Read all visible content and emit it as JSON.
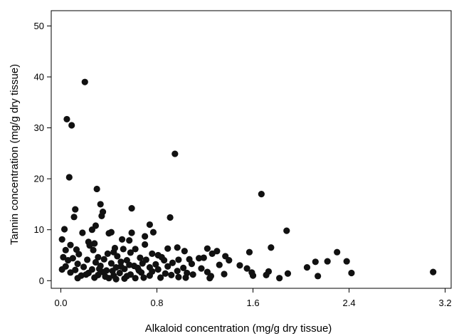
{
  "chart_data": {
    "type": "scatter",
    "title": "",
    "xlabel": "Alkaloid concentration (mg/g dry tissue)",
    "ylabel": "Tannin concentration (mg/g dry tissue)",
    "xlim": [
      -0.08,
      3.25
    ],
    "ylim": [
      -1.5,
      53
    ],
    "xticks": [
      0.0,
      0.8,
      1.6,
      2.4,
      3.2
    ],
    "xtick_labels": [
      "0.0",
      "0.8",
      "1.6",
      "2.4",
      "3.2"
    ],
    "yticks": [
      0,
      10,
      20,
      30,
      40,
      50
    ],
    "ytick_labels": [
      "0",
      "10",
      "20",
      "30",
      "40",
      "50"
    ],
    "grid": false,
    "marker_color": "#111111",
    "series": [
      {
        "points": [
          [
            0.2,
            39.0
          ],
          [
            0.05,
            31.7
          ],
          [
            0.09,
            30.5
          ],
          [
            0.95,
            24.9
          ],
          [
            0.07,
            20.3
          ],
          [
            0.3,
            18.0
          ],
          [
            1.67,
            17.0
          ],
          [
            0.33,
            15.0
          ],
          [
            0.12,
            14.0
          ],
          [
            0.59,
            14.2
          ],
          [
            0.35,
            13.5
          ],
          [
            0.34,
            12.7
          ],
          [
            0.11,
            12.5
          ],
          [
            0.91,
            12.4
          ],
          [
            0.74,
            11.0
          ],
          [
            0.29,
            10.8
          ],
          [
            0.03,
            10.1
          ],
          [
            1.88,
            9.8
          ],
          [
            0.26,
            10.0
          ],
          [
            0.42,
            9.5
          ],
          [
            0.18,
            9.4
          ],
          [
            0.4,
            9.3
          ],
          [
            0.77,
            9.5
          ],
          [
            0.59,
            9.4
          ],
          [
            0.7,
            8.7
          ],
          [
            0.01,
            8.1
          ],
          [
            0.51,
            8.1
          ],
          [
            0.57,
            7.9
          ],
          [
            0.23,
            7.6
          ],
          [
            0.28,
            7.3
          ],
          [
            0.24,
            6.9
          ],
          [
            0.08,
            7.0
          ],
          [
            0.7,
            7.1
          ],
          [
            0.97,
            6.5
          ],
          [
            1.22,
            6.3
          ],
          [
            1.75,
            6.5
          ],
          [
            0.45,
            6.4
          ],
          [
            0.62,
            6.2
          ],
          [
            0.13,
            6.1
          ],
          [
            0.04,
            6.0
          ],
          [
            0.27,
            6.0
          ],
          [
            0.52,
            6.2
          ],
          [
            0.89,
            6.3
          ],
          [
            1.03,
            5.8
          ],
          [
            1.3,
            5.8
          ],
          [
            1.57,
            5.6
          ],
          [
            2.3,
            5.6
          ],
          [
            0.15,
            5.2
          ],
          [
            0.39,
            5.3
          ],
          [
            0.44,
            5.6
          ],
          [
            0.58,
            5.5
          ],
          [
            0.76,
            5.3
          ],
          [
            0.81,
            5.0
          ],
          [
            1.26,
            5.3
          ],
          [
            1.37,
            4.8
          ],
          [
            0.02,
            4.6
          ],
          [
            0.1,
            4.4
          ],
          [
            0.31,
            4.6
          ],
          [
            0.47,
            4.8
          ],
          [
            0.66,
            4.5
          ],
          [
            0.84,
            4.6
          ],
          [
            1.07,
            4.2
          ],
          [
            1.15,
            4.4
          ],
          [
            1.19,
            4.5
          ],
          [
            1.4,
            4.0
          ],
          [
            0.06,
            4.0
          ],
          [
            0.22,
            4.1
          ],
          [
            0.36,
            4.2
          ],
          [
            0.55,
            4.0
          ],
          [
            0.71,
            4.1
          ],
          [
            0.86,
            4.0
          ],
          [
            0.98,
            4.1
          ],
          [
            2.12,
            3.7
          ],
          [
            2.22,
            3.8
          ],
          [
            2.38,
            3.8
          ],
          [
            0.14,
            3.3
          ],
          [
            0.29,
            3.6
          ],
          [
            0.42,
            3.4
          ],
          [
            0.5,
            3.7
          ],
          [
            0.68,
            3.4
          ],
          [
            0.79,
            3.2
          ],
          [
            0.93,
            3.5
          ],
          [
            1.09,
            3.3
          ],
          [
            1.32,
            3.1
          ],
          [
            1.49,
            3.0
          ],
          [
            0.04,
            2.8
          ],
          [
            0.19,
            2.7
          ],
          [
            0.33,
            2.9
          ],
          [
            0.46,
            2.6
          ],
          [
            0.61,
            2.9
          ],
          [
            0.74,
            2.6
          ],
          [
            0.89,
            2.8
          ],
          [
            1.02,
            2.5
          ],
          [
            1.17,
            2.4
          ],
          [
            1.55,
            2.4
          ],
          [
            2.05,
            2.6
          ],
          [
            0.01,
            2.2
          ],
          [
            0.12,
            2.1
          ],
          [
            0.26,
            2.2
          ],
          [
            0.38,
            2.0
          ],
          [
            0.53,
            2.3
          ],
          [
            0.65,
            2.0
          ],
          [
            0.81,
            2.2
          ],
          [
            0.97,
            1.9
          ],
          [
            1.22,
            1.7
          ],
          [
            1.59,
            1.6
          ],
          [
            0.08,
            1.6
          ],
          [
            0.23,
            1.5
          ],
          [
            0.35,
            1.7
          ],
          [
            0.49,
            1.5
          ],
          [
            0.67,
            1.6
          ],
          [
            0.87,
            1.4
          ],
          [
            1.05,
            1.5
          ],
          [
            1.36,
            1.3
          ],
          [
            1.73,
            1.8
          ],
          [
            1.89,
            1.4
          ],
          [
            2.42,
            1.5
          ],
          [
            3.1,
            1.7
          ],
          [
            0.17,
            1.0
          ],
          [
            0.31,
            1.1
          ],
          [
            0.44,
            1.0
          ],
          [
            0.58,
            1.2
          ],
          [
            0.74,
            1.0
          ],
          [
            0.92,
            1.1
          ],
          [
            1.1,
            1.2
          ],
          [
            1.25,
            0.9
          ],
          [
            1.6,
            1.0
          ],
          [
            1.71,
            1.1
          ],
          [
            2.14,
            0.9
          ],
          [
            0.28,
            0.6
          ],
          [
            0.4,
            0.5
          ],
          [
            0.53,
            0.4
          ],
          [
            0.69,
            0.6
          ],
          [
            0.98,
            0.7
          ],
          [
            1.04,
            0.6
          ],
          [
            1.24,
            0.5
          ],
          [
            1.82,
            0.5
          ],
          [
            0.14,
            0.5
          ],
          [
            0.46,
            0.3
          ],
          [
            0.62,
            0.5
          ],
          [
            0.37,
            0.8
          ],
          [
            0.55,
            0.9
          ],
          [
            0.83,
            0.6
          ],
          [
            0.21,
            1.2
          ],
          [
            0.64,
            2.5
          ],
          [
            0.43,
            1.9
          ],
          [
            0.76,
            1.8
          ],
          [
            0.32,
            2.3
          ],
          [
            0.5,
            2.8
          ],
          [
            0.57,
            3.1
          ]
        ]
      }
    ]
  }
}
